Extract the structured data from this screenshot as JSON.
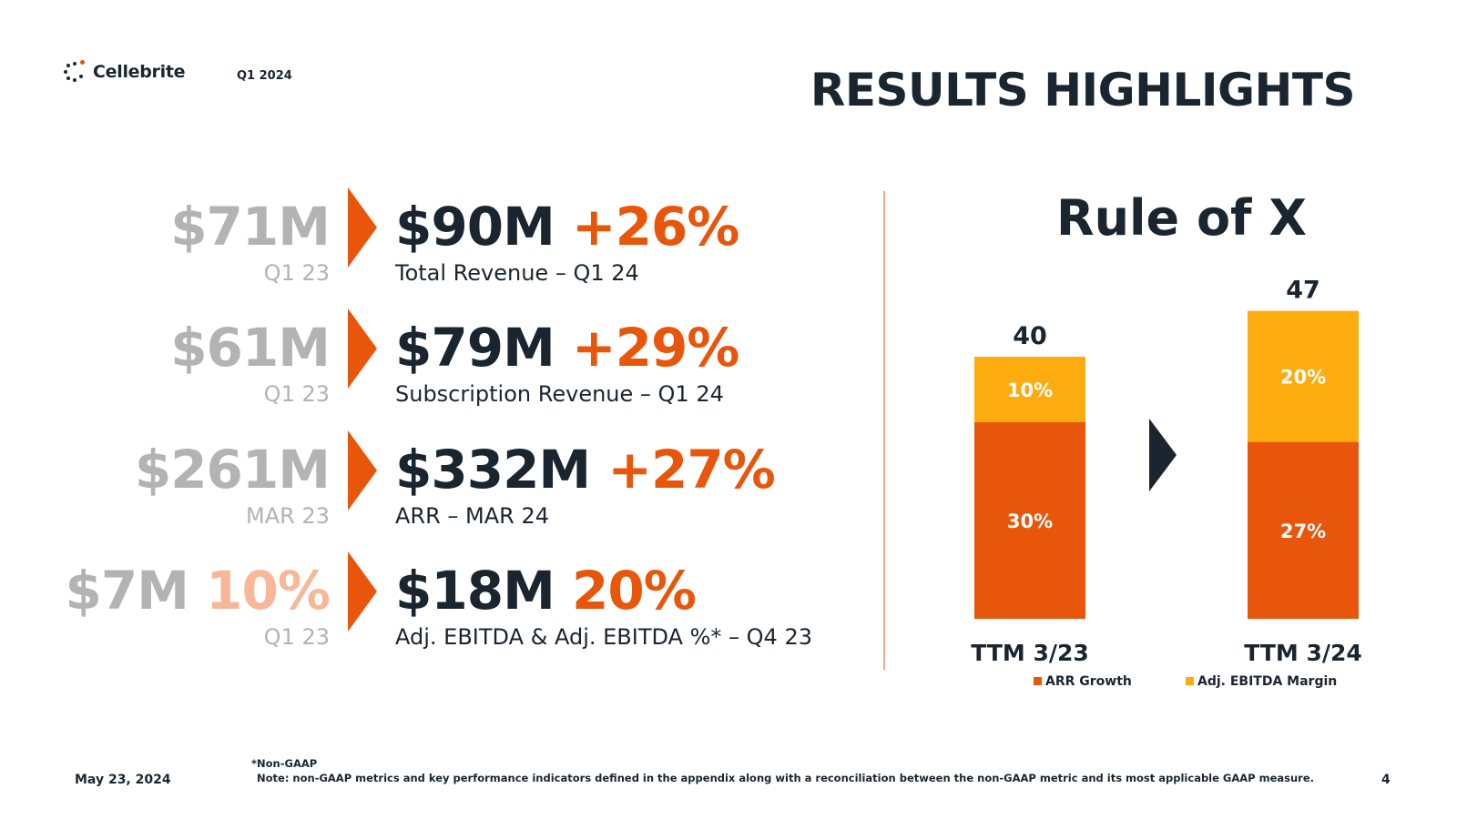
{
  "header": {
    "brand": "Cellebrite",
    "logo_icon": "cellebrite-dots-logo",
    "period": "Q1 2024",
    "title": "RESULTS HIGHLIGHTS"
  },
  "colors": {
    "navy": "#1a2530",
    "orange": "#e8560c",
    "amber": "#fdac10",
    "gray": "#b3b3b3",
    "pale_orange": "#f7b89a"
  },
  "metrics": [
    {
      "prior_value": "$71M",
      "prior_extra": "",
      "prior_label": "Q1 23",
      "current_value": "$90M",
      "current_change": "+26%",
      "current_label": "Total Revenue – Q1 24"
    },
    {
      "prior_value": "$61M",
      "prior_extra": "",
      "prior_label": "Q1 23",
      "current_value": "$79M",
      "current_change": "+29%",
      "current_label": "Subscription Revenue – Q1 24"
    },
    {
      "prior_value": "$261M",
      "prior_extra": "",
      "prior_label": "MAR 23",
      "current_value": "$332M",
      "current_change": "+27%",
      "current_label": "ARR – MAR 24"
    },
    {
      "prior_value": "$7M",
      "prior_extra": "10%",
      "prior_label": "Q1 23",
      "current_value": "$18M",
      "current_change": "20%",
      "current_label": "Adj. EBITDA & Adj. EBITDA %* – Q4 23"
    }
  ],
  "chart_data": {
    "type": "bar",
    "stacked": true,
    "title": "Rule of X",
    "categories": [
      "TTM 3/23",
      "TTM 3/24"
    ],
    "totals": [
      40,
      47
    ],
    "series": [
      {
        "name": "ARR Growth",
        "values": [
          30,
          27
        ],
        "labels": [
          "30%",
          "27%"
        ],
        "color": "#e8560c"
      },
      {
        "name": "Adj. EBITDA Margin",
        "values": [
          10,
          20
        ],
        "labels": [
          "10%",
          "20%"
        ],
        "color": "#fdac10"
      }
    ],
    "legend": "bottom"
  },
  "footer": {
    "non_gaap": "*Non-GAAP",
    "note": "Note: non-GAAP metrics and key performance indicators defined in the appendix along with a reconciliation between the non-GAAP metric and its most applicable GAAP measure.",
    "date": "May 23, 2024",
    "page": "4"
  }
}
